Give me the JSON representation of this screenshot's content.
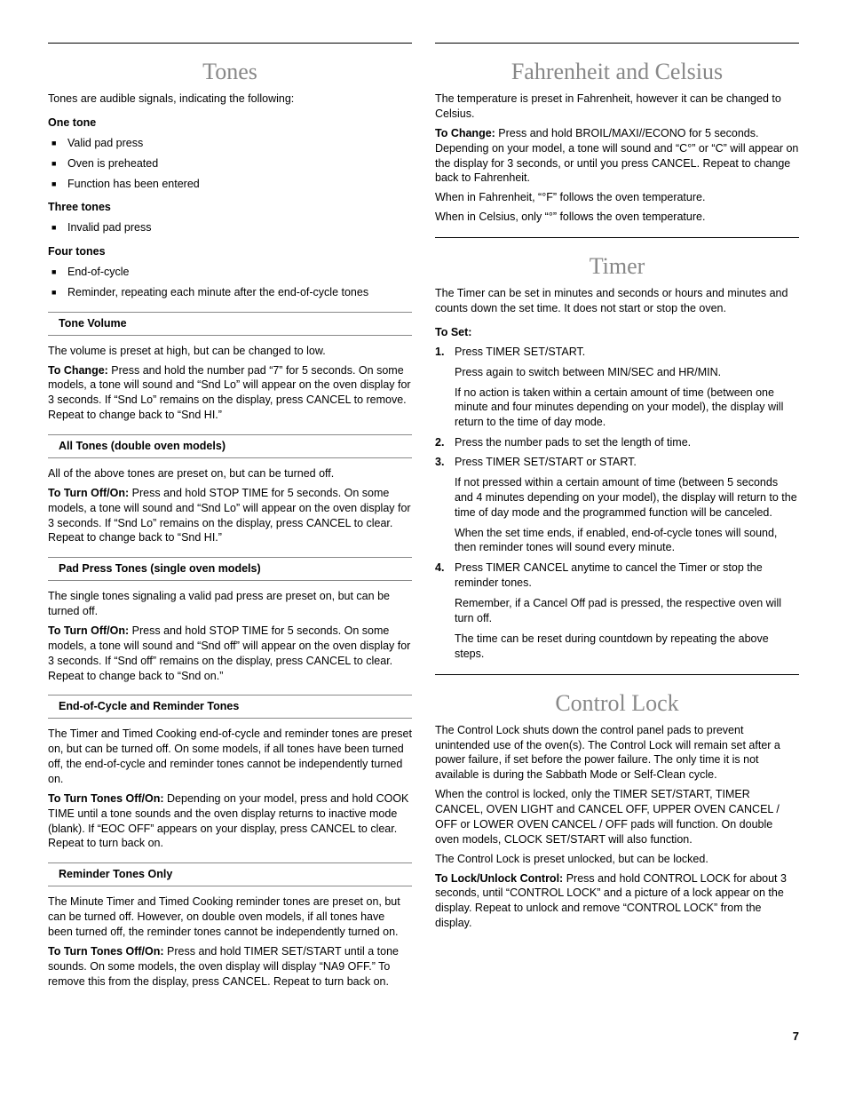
{
  "page_number": "7",
  "left": {
    "tones": {
      "title": "Tones",
      "intro": "Tones are audible signals, indicating the following:",
      "one_tone": {
        "h": "One tone",
        "items": [
          "Valid pad press",
          "Oven is preheated",
          "Function has been entered"
        ]
      },
      "three_tones": {
        "h": "Three tones",
        "items": [
          "Invalid pad press"
        ]
      },
      "four_tones": {
        "h": "Four tones",
        "items": [
          "End-of-cycle",
          "Reminder, repeating each minute after the end-of-cycle tones"
        ]
      },
      "tone_volume": {
        "h": "Tone Volume",
        "p1": "The volume is preset at high, but can be changed to low.",
        "p2_label": "To Change: ",
        "p2": "Press and hold the number pad “7” for 5 seconds. On some models, a tone will sound and “Snd Lo” will appear on the oven display for 3 seconds. If “Snd Lo” remains on the display, press CANCEL to remove. Repeat to change back to “Snd HI.”"
      },
      "all_tones": {
        "h": "All Tones (double oven models)",
        "p1": "All of the above tones are preset on, but can be turned off.",
        "p2_label": "To Turn Off/On: ",
        "p2": "Press and hold STOP TIME for 5 seconds. On some models, a tone will sound and “Snd Lo” will appear on the oven display for 3 seconds. If “Snd Lo” remains on the display, press CANCEL to clear. Repeat to change back to “Snd HI.”"
      },
      "pad_press": {
        "h": "Pad Press Tones (single oven models)",
        "p1": "The single tones signaling a valid pad press are preset on, but can be turned off.",
        "p2_label": "To Turn Off/On: ",
        "p2": "Press and hold STOP TIME for 5 seconds. On some models, a tone will sound and “Snd off” will appear on the oven display for 3 seconds. If “Snd off” remains on the display, press CANCEL to clear. Repeat to change back to “Snd on.”"
      },
      "eoc": {
        "h": "End-of-Cycle and Reminder Tones",
        "p1": "The Timer and Timed Cooking end-of-cycle and reminder tones are preset on, but can be turned off. On some models, if all tones have been turned off, the end-of-cycle and reminder tones cannot be independently turned on.",
        "p2_label": "To Turn Tones Off/On: ",
        "p2": "Depending on your model, press and hold COOK TIME until a tone sounds and the oven display returns to inactive mode (blank). If “EOC OFF” appears on your display, press CANCEL to clear. Repeat to turn back on."
      },
      "reminder": {
        "h": "Reminder Tones Only",
        "p1": "The Minute Timer and Timed Cooking reminder tones are preset on, but can be turned off. However, on double oven models, if all tones have been turned off, the reminder tones cannot be independently turned on.",
        "p2_label": "To Turn Tones Off/On: ",
        "p2": "Press and hold TIMER SET/START until a tone sounds. On some models, the oven display will display “NA9 OFF.” To remove this from the display, press CANCEL. Repeat to turn back on."
      }
    }
  },
  "right": {
    "fc": {
      "title": "Fahrenheit and Celsius",
      "p1": "The temperature is preset in Fahrenheit, however it can be changed to Celsius.",
      "p2_label": "To Change: ",
      "p2": "Press and hold BROIL/MAXI//ECONO for 5 seconds. Depending on your model, a tone will sound and “C°” or “C” will appear on the display for 3 seconds, or until you press CANCEL. Repeat to change back to Fahrenheit.",
      "p3": "When in Fahrenheit, “°F” follows the oven temperature.",
      "p4": "When in Celsius, only “°” follows the oven temperature."
    },
    "timer": {
      "title": "Timer",
      "intro": "The Timer can be set in minutes and seconds or hours and minutes and counts down the set time. It does not start or stop the oven.",
      "toset": "To Set:",
      "s1a": "Press TIMER SET/START.",
      "s1b": "Press again to switch between MIN/SEC and HR/MIN.",
      "s1c": "If no action is taken within a certain amount of time (between one minute and four minutes depending on your model), the display will return to the time of day mode.",
      "s2": "Press the number pads to set the length of time.",
      "s3a": "Press TIMER SET/START or START.",
      "s3b": "If not pressed within a certain amount of time (between 5 seconds and 4 minutes depending on your model), the display will return to the time of day mode and the programmed function will be canceled.",
      "s3c": "When the set time ends, if enabled, end-of-cycle tones will sound, then reminder tones will sound every minute.",
      "s4a": "Press TIMER CANCEL anytime to cancel the Timer or stop the reminder tones.",
      "s4b": "Remember, if a Cancel Off pad is pressed, the respective oven will turn off.",
      "s4c": "The time can be reset during countdown by repeating the above steps."
    },
    "lock": {
      "title": "Control Lock",
      "p1": "The Control Lock shuts down the control panel pads to prevent unintended use of the oven(s). The Control Lock will remain set after a power failure, if set before the power failure. The only time it is not available is during the Sabbath Mode or Self-Clean cycle.",
      "p2": "When the control is locked, only the TIMER SET/START, TIMER CANCEL, OVEN LIGHT and CANCEL OFF, UPPER OVEN CANCEL / OFF or LOWER OVEN CANCEL / OFF pads will function. On double oven models, CLOCK SET/START will also function.",
      "p3": "The Control Lock is preset unlocked, but can be locked.",
      "p4_label": "To Lock/Unlock Control: ",
      "p4": "Press and hold CONTROL LOCK for about 3 seconds, until “CONTROL LOCK” and a picture of a lock appear on the display. Repeat to unlock and remove “CONTROL LOCK” from the display."
    }
  }
}
